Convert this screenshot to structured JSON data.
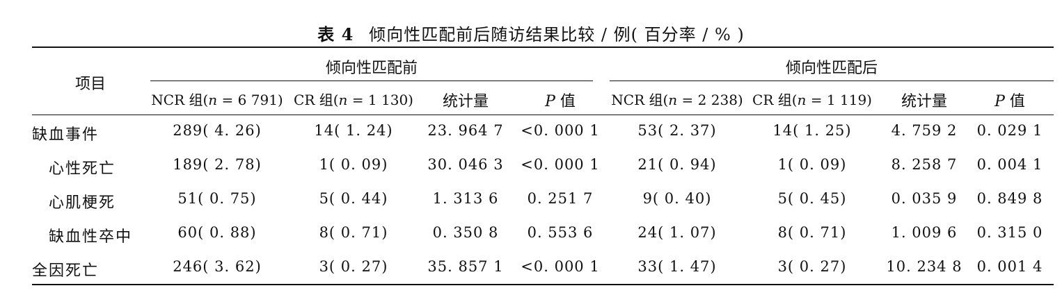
{
  "caption": {
    "number": "表 4",
    "title": "倾向性匹配前后随访结果比较 / 例( 百分率 / % )"
  },
  "table": {
    "stub_header": "项目",
    "groups": [
      "倾向性匹配前",
      "倾向性匹配后"
    ],
    "subheaders": [
      {
        "pre": "NCR 组(",
        "italic": "n",
        "post": " = 6 791)"
      },
      {
        "pre": "CR 组(",
        "italic": "n",
        "post": " = 1 130)"
      },
      {
        "pre": "统计量",
        "italic": "",
        "post": ""
      },
      {
        "pre": "",
        "italic": "P",
        "post": " 值"
      },
      {
        "pre": "NCR 组(",
        "italic": "n",
        "post": " = 2 238)"
      },
      {
        "pre": "CR 组(",
        "italic": "n",
        "post": " = 1 119)"
      },
      {
        "pre": "统计量",
        "italic": "",
        "post": ""
      },
      {
        "pre": "",
        "italic": "P",
        "post": " 值"
      }
    ],
    "rows": [
      {
        "label": "缺血事件",
        "cells": [
          "289( 4. 26)",
          "14( 1. 24)",
          "23. 964 7",
          "<0. 000 1",
          "53( 2. 37)",
          "14( 1. 25)",
          "4. 759 2",
          "0. 029 1"
        ]
      },
      {
        "label": "心性死亡",
        "cells": [
          "189( 2. 78)",
          "1( 0. 09)",
          "30. 046 3",
          "<0. 000 1",
          "21( 0. 94)",
          "1( 0. 09)",
          "8. 258 7",
          "0. 004 1"
        ]
      },
      {
        "label": "心肌梗死",
        "cells": [
          "51( 0. 75)",
          "5( 0. 44)",
          "1. 313 6",
          "0. 251 7",
          "9( 0. 40)",
          "5( 0. 45)",
          "0. 035 9",
          "0. 849 8"
        ]
      },
      {
        "label": "缺血性卒中",
        "cells": [
          "60( 0. 88)",
          "8( 0. 71)",
          "0. 350 8",
          "0. 553 6",
          "24( 1. 07)",
          "8( 0. 71)",
          "1. 009 6",
          "0. 315 0"
        ]
      },
      {
        "label": "全因死亡",
        "cells": [
          "246( 3. 62)",
          "3( 0. 27)",
          "35. 857 1",
          "<0. 000 1",
          "33( 1. 47)",
          "3( 0. 27)",
          "10. 234 8",
          "0. 001 4"
        ]
      }
    ]
  }
}
